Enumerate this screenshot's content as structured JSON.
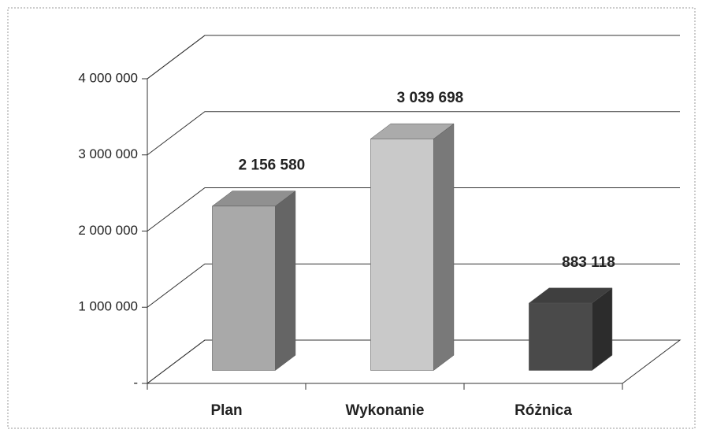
{
  "chart_data": {
    "type": "bar3d",
    "categories": [
      "Plan",
      "Wykonanie",
      "Różnica"
    ],
    "values": [
      2156580,
      3039698,
      883118
    ],
    "value_labels": [
      "2 156 580",
      "3 039 698",
      "883 118"
    ],
    "colors": [
      "#a9a9a9",
      "#c9c9c9",
      "#4a4a4a"
    ],
    "ylim": [
      0,
      4000000
    ],
    "yticks": [
      {
        "value": 0,
        "label": "-"
      },
      {
        "value": 1000000,
        "label": "1 000 000"
      },
      {
        "value": 2000000,
        "label": "2 000 000"
      },
      {
        "value": 3000000,
        "label": "3 000 000"
      },
      {
        "value": 4000000,
        "label": "4 000 000"
      }
    ],
    "grid": true
  }
}
